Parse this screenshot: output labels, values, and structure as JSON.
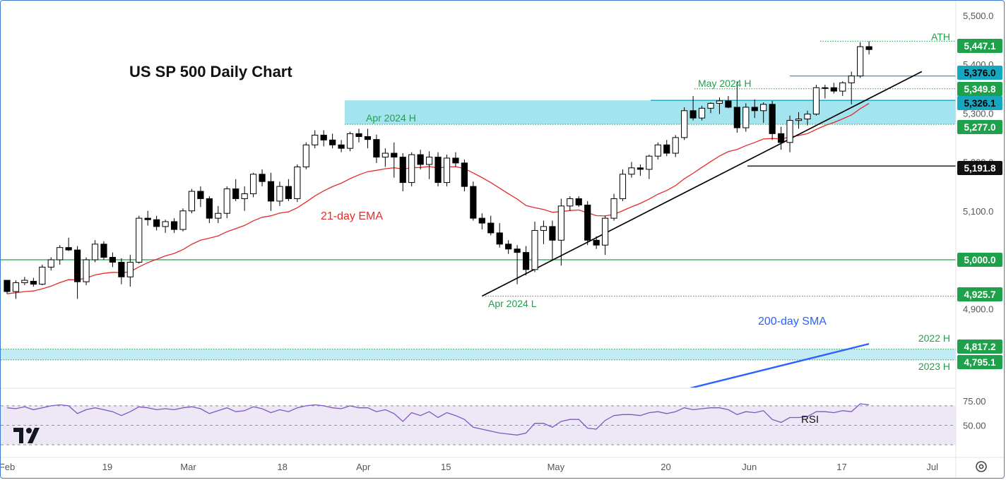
{
  "chart_data": {
    "type": "candlestick",
    "title": "US SP 500 Daily Chart",
    "price_axis": {
      "ticks": [
        "5,500.0",
        "5,400.0",
        "5,300.0",
        "5,200.0",
        "5,100.0",
        "5,000.0",
        "4,900.0"
      ]
    },
    "time_axis": {
      "ticks": [
        "Feb",
        "19",
        "Mar",
        "18",
        "Apr",
        "15",
        "May",
        "20",
        "Jun",
        "17",
        "Jul"
      ]
    },
    "candles": [
      [
        4958,
        4958,
        4930,
        4935
      ],
      [
        4935,
        4958,
        4920,
        4953
      ],
      [
        4953,
        4965,
        4948,
        4958
      ],
      [
        4956,
        4963,
        4945,
        4950
      ],
      [
        4950,
        4990,
        4948,
        4985
      ],
      [
        4985,
        5005,
        4978,
        5000
      ],
      [
        5000,
        5030,
        4990,
        5025
      ],
      [
        5025,
        5045,
        5018,
        5020
      ],
      [
        5020,
        5028,
        4920,
        4955
      ],
      [
        4955,
        5005,
        4948,
        5000
      ],
      [
        5000,
        5040,
        4995,
        5032
      ],
      [
        5032,
        5038,
        5000,
        5005
      ],
      [
        5005,
        5015,
        4985,
        4995
      ],
      [
        4995,
        5003,
        4950,
        4965
      ],
      [
        4965,
        5010,
        4945,
        4995
      ],
      [
        4995,
        5090,
        4992,
        5085
      ],
      [
        5085,
        5100,
        5070,
        5082
      ],
      [
        5082,
        5090,
        5060,
        5068
      ],
      [
        5068,
        5082,
        5055,
        5078
      ],
      [
        5078,
        5085,
        5055,
        5062
      ],
      [
        5062,
        5105,
        5058,
        5100
      ],
      [
        5100,
        5145,
        5095,
        5140
      ],
      [
        5140,
        5150,
        5108,
        5125
      ],
      [
        5125,
        5130,
        5075,
        5085
      ],
      [
        5085,
        5110,
        5075,
        5095
      ],
      [
        5095,
        5150,
        5085,
        5145
      ],
      [
        5145,
        5165,
        5120,
        5125
      ],
      [
        5125,
        5150,
        5100,
        5135
      ],
      [
        5135,
        5178,
        5128,
        5175
      ],
      [
        5175,
        5185,
        5150,
        5160
      ],
      [
        5160,
        5178,
        5100,
        5120
      ],
      [
        5120,
        5160,
        5110,
        5150
      ],
      [
        5150,
        5165,
        5120,
        5125
      ],
      [
        5125,
        5195,
        5118,
        5190
      ],
      [
        5190,
        5240,
        5185,
        5235
      ],
      [
        5235,
        5265,
        5228,
        5255
      ],
      [
        5255,
        5265,
        5232,
        5245
      ],
      [
        5245,
        5258,
        5228,
        5235
      ],
      [
        5235,
        5245,
        5220,
        5228
      ],
      [
        5228,
        5262,
        5222,
        5258
      ],
      [
        5258,
        5268,
        5240,
        5252
      ],
      [
        5252,
        5268,
        5228,
        5246
      ],
      [
        5246,
        5256,
        5198,
        5210
      ],
      [
        5210,
        5228,
        5190,
        5218
      ],
      [
        5218,
        5240,
        5168,
        5210
      ],
      [
        5210,
        5218,
        5140,
        5158
      ],
      [
        5158,
        5220,
        5150,
        5215
      ],
      [
        5215,
        5225,
        5185,
        5195
      ],
      [
        5195,
        5222,
        5165,
        5210
      ],
      [
        5210,
        5220,
        5150,
        5158
      ],
      [
        5158,
        5215,
        5150,
        5208
      ],
      [
        5208,
        5220,
        5190,
        5198
      ],
      [
        5198,
        5205,
        5140,
        5150
      ],
      [
        5150,
        5160,
        5080,
        5085
      ],
      [
        5085,
        5095,
        5062,
        5075
      ],
      [
        5075,
        5090,
        5050,
        5055
      ],
      [
        5055,
        5075,
        5025,
        5032
      ],
      [
        5032,
        5040,
        5012,
        5022
      ],
      [
        5022,
        5030,
        4950,
        5015
      ],
      [
        5015,
        5028,
        4968,
        4980
      ],
      [
        4980,
        5078,
        4975,
        5060
      ],
      [
        5060,
        5080,
        5032,
        5068
      ],
      [
        5068,
        5080,
        5000,
        5040
      ],
      [
        5040,
        5125,
        4988,
        5110
      ],
      [
        5110,
        5130,
        5100,
        5125
      ],
      [
        5125,
        5130,
        5108,
        5112
      ],
      [
        5112,
        5120,
        5030,
        5040
      ],
      [
        5040,
        5048,
        5022,
        5030
      ],
      [
        5030,
        5090,
        5010,
        5085
      ],
      [
        5085,
        5135,
        5080,
        5125
      ],
      [
        5125,
        5185,
        5120,
        5175
      ],
      [
        5175,
        5200,
        5168,
        5188
      ],
      [
        5188,
        5195,
        5172,
        5185
      ],
      [
        5185,
        5215,
        5165,
        5212
      ],
      [
        5212,
        5240,
        5205,
        5235
      ],
      [
        5235,
        5245,
        5212,
        5218
      ],
      [
        5218,
        5255,
        5210,
        5250
      ],
      [
        5250,
        5312,
        5245,
        5305
      ],
      [
        5305,
        5335,
        5285,
        5290
      ],
      [
        5290,
        5315,
        5285,
        5310
      ],
      [
        5310,
        5322,
        5300,
        5320
      ],
      [
        5320,
        5332,
        5298,
        5325
      ],
      [
        5325,
        5335,
        5310,
        5312
      ],
      [
        5312,
        5365,
        5260,
        5270
      ],
      [
        5270,
        5320,
        5262,
        5312
      ],
      [
        5312,
        5328,
        5290,
        5305
      ],
      [
        5305,
        5322,
        5280,
        5318
      ],
      [
        5318,
        5325,
        5245,
        5258
      ],
      [
        5258,
        5272,
        5225,
        5240
      ],
      [
        5240,
        5295,
        5220,
        5285
      ],
      [
        5285,
        5302,
        5268,
        5288
      ],
      [
        5288,
        5305,
        5275,
        5298
      ],
      [
        5298,
        5358,
        5295,
        5352
      ],
      [
        5352,
        5358,
        5330,
        5352
      ],
      [
        5352,
        5362,
        5340,
        5345
      ],
      [
        5345,
        5365,
        5335,
        5362
      ],
      [
        5362,
        5385,
        5318,
        5376
      ],
      [
        5376,
        5445,
        5372,
        5436
      ],
      [
        5436,
        5447,
        5420,
        5430
      ]
    ],
    "indicators": {
      "ema21": {
        "name": "21-day EMA"
      },
      "sma200": {
        "name": "200-day SMA"
      }
    },
    "levels": [
      {
        "value": 5447.1,
        "label": "5,447.1",
        "annotation": "ATH",
        "style": "dotted",
        "color": "#1fa14b"
      },
      {
        "value": 5376.0,
        "label": "5,376.0",
        "annotation": "",
        "style": "solid",
        "color": "#15a6c0"
      },
      {
        "value": 5349.8,
        "label": "5,349.8",
        "annotation": "May 2024 H",
        "style": "dotted",
        "color": "#1fa14b"
      },
      {
        "value": 5326.1,
        "label": "5,326.1",
        "annotation": "",
        "style": "solid",
        "color": "#15a6c0"
      },
      {
        "value": 5277.0,
        "label": "5,277.0",
        "annotation": "Apr 2024 H",
        "style": "dotted",
        "color": "#1fa14b"
      },
      {
        "value": 5191.8,
        "label": "5,191.8",
        "annotation": "",
        "style": "solid",
        "color": "#111111"
      },
      {
        "value": 5000.0,
        "label": "5,000.0",
        "annotation": "",
        "style": "solid",
        "color": "#1fa14b"
      },
      {
        "value": 4925.7,
        "label": "4,925.7",
        "annotation": "Apr 2024 L",
        "style": "dotted",
        "color": "#1fa14b"
      },
      {
        "value": 4817.2,
        "label": "4,817.2",
        "annotation": "2022 H",
        "style": "dotted",
        "color": "#1fa14b"
      },
      {
        "value": 4795.1,
        "label": "4,795.1",
        "annotation": "2023 H",
        "style": "dotted",
        "color": "#1fa14b"
      }
    ],
    "zones": [
      {
        "from": 5277.0,
        "to": 5326.1,
        "color": "#9ee3ee"
      },
      {
        "from": 4795.1,
        "to": 4817.2,
        "color": "#bfeaf3"
      }
    ],
    "trendline": {
      "from": 4925.7,
      "to": 5385.0
    },
    "rsi": {
      "label": "RSI",
      "ticks": [
        "75.00",
        "50.00"
      ],
      "levels": [
        70,
        30
      ],
      "values": [
        68,
        67,
        69,
        66,
        68,
        70,
        71,
        70,
        62,
        66,
        68,
        66,
        64,
        60,
        64,
        69,
        68,
        66,
        67,
        66,
        68,
        69,
        67,
        62,
        65,
        68,
        64,
        65,
        69,
        67,
        63,
        66,
        64,
        68,
        70,
        71,
        70,
        68,
        67,
        70,
        68,
        68,
        64,
        66,
        62,
        54,
        63,
        60,
        64,
        58,
        63,
        60,
        56,
        48,
        46,
        44,
        42,
        41,
        40,
        42,
        52,
        52,
        48,
        54,
        56,
        56,
        47,
        46,
        55,
        60,
        61,
        61,
        60,
        63,
        64,
        62,
        64,
        68,
        66,
        67,
        68,
        68,
        66,
        61,
        64,
        63,
        65,
        56,
        53,
        58,
        58,
        59,
        64,
        64,
        63,
        65,
        64,
        72,
        71
      ]
    },
    "colors": {
      "up": "#ffffff",
      "down": "#000000",
      "ema": "#e32b2b",
      "sma": "#2962ff",
      "level_green": "#1fa14b",
      "level_cyan": "#15a6c0",
      "zone": "#9ee3ee",
      "rsi": "#7e57c2",
      "rsi_band": "#ede7f6"
    }
  },
  "ui": {
    "settings_icon": "gear-icon",
    "logo_icon": "tradingview-logo-icon"
  }
}
